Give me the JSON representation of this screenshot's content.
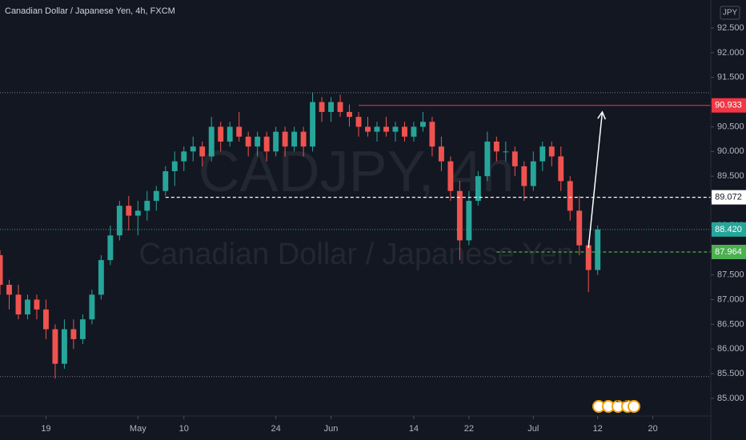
{
  "chart_data": {
    "type": "candlestick",
    "title": "Canadian Dollar / Japanese Yen, 4h, FXCM",
    "watermark": "CADJPY, 4h",
    "watermark_subtitle": "Canadian Dollar / Japanese Yen",
    "currency": "JPY",
    "up_color": "#26a69a",
    "down_color": "#ef5350",
    "grid": false,
    "xlim": [
      0,
      77.3
    ],
    "xticks": [
      {
        "value": 5,
        "label": "19"
      },
      {
        "value": 15,
        "label": "May"
      },
      {
        "value": 20,
        "label": "10"
      },
      {
        "value": 30,
        "label": "24"
      },
      {
        "value": 36,
        "label": "Jun"
      },
      {
        "value": 45,
        "label": "14"
      },
      {
        "value": 51,
        "label": "22"
      },
      {
        "value": 58,
        "label": "Jul"
      },
      {
        "value": 65,
        "label": "12"
      },
      {
        "value": 71,
        "label": "20"
      }
    ],
    "ylim": [
      84.643,
      93.067
    ],
    "yticks": [
      {
        "value": 85,
        "label": "85.000"
      },
      {
        "value": 85.5,
        "label": "85.500"
      },
      {
        "value": 86,
        "label": "86.000"
      },
      {
        "value": 86.5,
        "label": "86.500"
      },
      {
        "value": 87,
        "label": "87.000"
      },
      {
        "value": 87.5,
        "label": "87.500"
      },
      {
        "value": 88,
        "label": "88.000"
      },
      {
        "value": 88.5,
        "label": "88.500"
      },
      {
        "value": 89,
        "label": "89.000"
      },
      {
        "value": 89.5,
        "label": "89.500"
      },
      {
        "value": 90,
        "label": "90.000"
      },
      {
        "value": 90.5,
        "label": "90.500"
      },
      {
        "value": 91,
        "label": "91.000"
      },
      {
        "value": 91.5,
        "label": "91.500"
      },
      {
        "value": 92,
        "label": "92.000"
      },
      {
        "value": 92.5,
        "label": "92.500"
      }
    ],
    "x": [
      0,
      1,
      2,
      3,
      4,
      5,
      6,
      7,
      8,
      9,
      10,
      11,
      12,
      13,
      14,
      15,
      16,
      17,
      18,
      19,
      20,
      21,
      22,
      23,
      24,
      25,
      26,
      27,
      28,
      29,
      30,
      31,
      32,
      33,
      34,
      35,
      36,
      37,
      38,
      39,
      40,
      41,
      42,
      43,
      44,
      45,
      46,
      47,
      48,
      49,
      50,
      51,
      52,
      53,
      54,
      55,
      56,
      57,
      58,
      59,
      60,
      61,
      62,
      63,
      64,
      65
    ],
    "candles": [
      [
        87.9,
        88.0,
        87.1,
        87.3
      ],
      [
        87.3,
        87.4,
        86.8,
        87.1
      ],
      [
        87.1,
        87.3,
        86.6,
        86.7
      ],
      [
        86.7,
        87.1,
        86.6,
        87.0
      ],
      [
        87.0,
        87.1,
        86.6,
        86.8
      ],
      [
        86.8,
        87.0,
        86.2,
        86.4
      ],
      [
        86.4,
        86.5,
        85.4,
        85.7
      ],
      [
        85.7,
        86.6,
        85.6,
        86.4
      ],
      [
        86.4,
        86.6,
        86.0,
        86.2
      ],
      [
        86.2,
        86.7,
        86.1,
        86.6
      ],
      [
        86.6,
        87.2,
        86.5,
        87.1
      ],
      [
        87.1,
        87.9,
        87.0,
        87.8
      ],
      [
        87.8,
        88.5,
        87.7,
        88.3
      ],
      [
        88.3,
        89.0,
        88.2,
        88.9
      ],
      [
        88.9,
        89.1,
        88.4,
        88.7
      ],
      [
        88.7,
        89.0,
        88.3,
        88.8
      ],
      [
        88.8,
        89.2,
        88.6,
        89.0
      ],
      [
        89.0,
        89.3,
        88.8,
        89.2
      ],
      [
        89.2,
        89.7,
        89.1,
        89.6
      ],
      [
        89.6,
        90.0,
        89.3,
        89.8
      ],
      [
        89.8,
        90.1,
        89.6,
        90.0
      ],
      [
        90.0,
        90.3,
        89.8,
        90.1
      ],
      [
        90.1,
        90.2,
        89.7,
        89.9
      ],
      [
        89.9,
        90.7,
        89.8,
        90.5
      ],
      [
        90.5,
        90.6,
        90.0,
        90.2
      ],
      [
        90.2,
        90.6,
        90.1,
        90.5
      ],
      [
        90.5,
        90.8,
        90.2,
        90.3
      ],
      [
        90.3,
        90.4,
        89.9,
        90.1
      ],
      [
        90.1,
        90.4,
        89.9,
        90.3
      ],
      [
        90.3,
        90.4,
        89.8,
        90.0
      ],
      [
        90.0,
        90.5,
        89.9,
        90.4
      ],
      [
        90.4,
        90.5,
        89.9,
        90.1
      ],
      [
        90.1,
        90.5,
        90.0,
        90.4
      ],
      [
        90.4,
        90.5,
        89.9,
        90.1
      ],
      [
        90.1,
        91.2,
        90.0,
        91.0
      ],
      [
        91.0,
        91.1,
        90.6,
        90.8
      ],
      [
        90.8,
        91.1,
        90.6,
        91.0
      ],
      [
        91.0,
        91.15,
        90.7,
        90.8
      ],
      [
        90.8,
        90.95,
        90.5,
        90.7
      ],
      [
        90.7,
        90.8,
        90.3,
        90.5
      ],
      [
        90.5,
        90.7,
        90.3,
        90.4
      ],
      [
        90.4,
        90.6,
        90.2,
        90.5
      ],
      [
        90.5,
        90.7,
        90.3,
        90.4
      ],
      [
        90.4,
        90.6,
        90.2,
        90.5
      ],
      [
        90.5,
        90.6,
        90.2,
        90.3
      ],
      [
        90.3,
        90.6,
        90.2,
        90.5
      ],
      [
        90.5,
        90.8,
        90.4,
        90.6
      ],
      [
        90.6,
        90.7,
        89.9,
        90.1
      ],
      [
        90.1,
        90.3,
        89.6,
        89.8
      ],
      [
        89.8,
        89.9,
        89.0,
        89.2
      ],
      [
        89.2,
        89.4,
        87.8,
        88.2
      ],
      [
        88.2,
        89.2,
        88.1,
        89.0
      ],
      [
        89.0,
        89.6,
        88.9,
        89.5
      ],
      [
        89.5,
        90.4,
        89.4,
        90.2
      ],
      [
        90.2,
        90.3,
        89.8,
        90.0
      ],
      [
        90.0,
        90.2,
        89.8,
        90.0
      ],
      [
        90.0,
        90.1,
        89.5,
        89.7
      ],
      [
        89.7,
        89.8,
        89.0,
        89.3
      ],
      [
        89.3,
        90.0,
        89.2,
        89.8
      ],
      [
        89.8,
        90.2,
        89.6,
        90.1
      ],
      [
        90.1,
        90.2,
        89.7,
        89.9
      ],
      [
        89.9,
        90.1,
        89.2,
        89.4
      ],
      [
        89.4,
        89.5,
        88.6,
        88.8
      ],
      [
        88.8,
        89.1,
        87.9,
        88.1
      ],
      [
        88.1,
        88.2,
        87.15,
        87.6
      ],
      [
        87.6,
        88.5,
        87.5,
        88.42
      ]
    ],
    "levels": [
      {
        "value": 91.19,
        "from": 0,
        "color": "#787b86",
        "style": "dotted",
        "price_label": false
      },
      {
        "value": 85.44,
        "from": 0,
        "color": "#787b86",
        "style": "dotted",
        "price_label": false
      },
      {
        "value": 90.933,
        "from": 39,
        "color": "#f23645",
        "style": "solid",
        "price_label": true
      },
      {
        "value": 89.072,
        "from": 18,
        "color": "#ffffff",
        "style": "dashed",
        "price_label": true
      },
      {
        "value": 88.42,
        "label": "88.420",
        "from": 0,
        "color": "#26a69a",
        "style": "dotted",
        "price_label": true
      },
      {
        "value": 87.964,
        "from": 54,
        "color": "#4caf50",
        "style": "dashed",
        "price_label": true
      }
    ],
    "arrow": {
      "x": [
        64,
        65.5
      ],
      "y": [
        88.05,
        90.8
      ],
      "color": "#ffffff"
    },
    "event_badges": [
      "2",
      "3"
    ]
  }
}
